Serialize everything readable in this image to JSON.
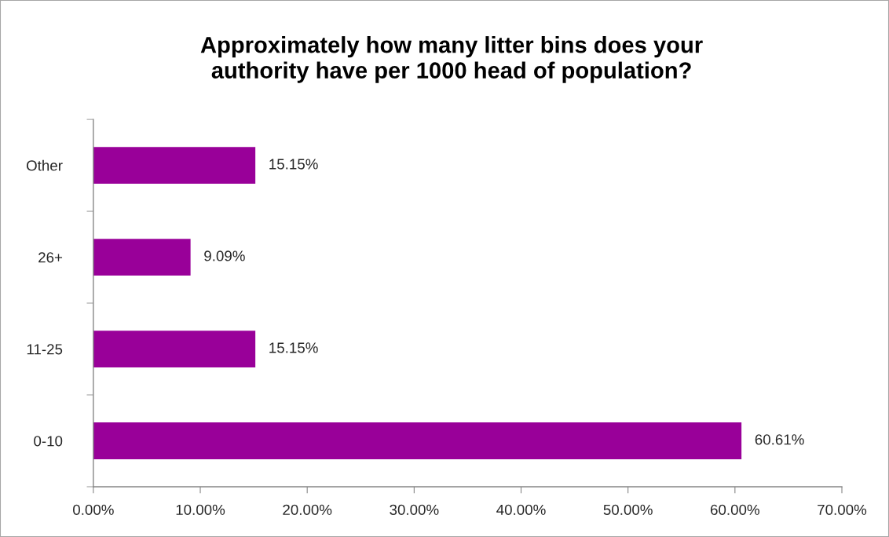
{
  "chart_data": {
    "type": "bar",
    "orientation": "horizontal",
    "title": "Approximately how many litter bins does your authority have per 1000 head of population?",
    "categories": [
      "Other",
      "26+",
      "11-25",
      "0-10"
    ],
    "values": [
      15.15,
      9.09,
      15.15,
      60.61
    ],
    "value_labels": [
      "15.15%",
      "9.09%",
      "15.15%",
      "60.61%"
    ],
    "color": "#990099",
    "xlim": [
      0,
      70
    ],
    "xticks": [
      {
        "value": 0,
        "label": "0.00%"
      },
      {
        "value": 10,
        "label": "10.00%"
      },
      {
        "value": 20,
        "label": "20.00%"
      },
      {
        "value": 30,
        "label": "30.00%"
      },
      {
        "value": 40,
        "label": "40.00%"
      },
      {
        "value": 50,
        "label": "50.00%"
      },
      {
        "value": 60,
        "label": "60.00%"
      },
      {
        "value": 70,
        "label": "70.00%"
      }
    ],
    "grid": false,
    "legend": false
  }
}
